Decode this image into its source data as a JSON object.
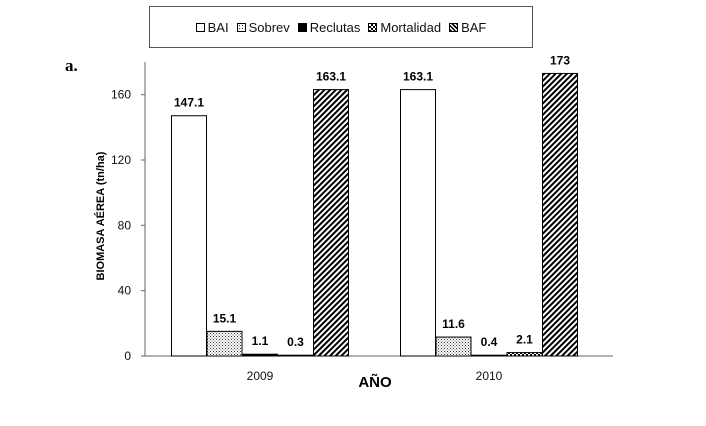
{
  "legend": {
    "items": [
      {
        "label": "BAI",
        "pattern": "white"
      },
      {
        "label": "Sobrev",
        "pattern": "dots"
      },
      {
        "label": "Reclutas",
        "pattern": "black"
      },
      {
        "label": "Mortalidad",
        "pattern": "checker"
      },
      {
        "label": "BAF",
        "pattern": "hatch"
      }
    ]
  },
  "panel_label": "a.",
  "chart_data": {
    "type": "bar",
    "categories": [
      "2009",
      "2010"
    ],
    "series": [
      {
        "name": "BAI",
        "values": [
          147.1,
          163.1
        ],
        "labels": [
          "147.1",
          "163.1"
        ]
      },
      {
        "name": "Sobrev",
        "values": [
          15.1,
          11.6
        ],
        "labels": [
          "15.1",
          "11.6"
        ]
      },
      {
        "name": "Reclutas",
        "values": [
          1.1,
          0.4
        ],
        "labels": [
          "1.1",
          "0.4"
        ]
      },
      {
        "name": "Mortalidad",
        "values": [
          0.3,
          2.1
        ],
        "labels": [
          "0.3",
          "2.1"
        ]
      },
      {
        "name": "BAF",
        "values": [
          163.1,
          173
        ],
        "labels": [
          "163.1",
          "173"
        ]
      }
    ],
    "xlabel": "AÑO",
    "ylabel": "BIOMASA AÉREA (tn/ha)",
    "ylim": [
      0,
      180
    ],
    "yticks": [
      0,
      40,
      80,
      120,
      160
    ],
    "grid": false,
    "legend_position": "top"
  }
}
